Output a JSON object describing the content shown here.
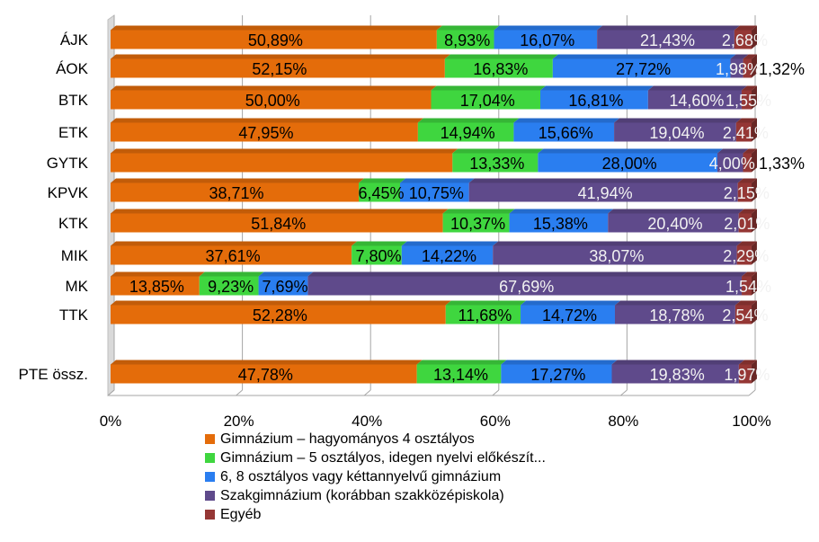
{
  "chart_data": {
    "type": "bar",
    "orientation": "horizontal",
    "stacked": "percent",
    "categories": [
      "ÁJK",
      "ÁOK",
      "BTK",
      "ETK",
      "GYTK",
      "KPVK",
      "KTK",
      "MIK",
      "MK",
      "TTK",
      "PTE össz."
    ],
    "series": [
      {
        "name": "Gimnázium – hagyományos 4 osztályos",
        "color": "#e46c0a",
        "values": [
          50.89,
          52.15,
          50.0,
          47.95,
          53.34,
          38.71,
          51.84,
          37.61,
          13.85,
          52.28,
          47.78
        ],
        "labels": [
          "50,89%",
          "52,15%",
          "50,00%",
          "47,95%",
          "",
          "38,71%",
          "51,84%",
          "37,61%",
          "13,85%",
          "52,28%",
          "47,78%"
        ]
      },
      {
        "name": "Gimnázium – 5 osztályos, idegen nyelvi előkészít...",
        "color": "#3fd63f",
        "values": [
          8.93,
          16.83,
          17.04,
          14.94,
          13.33,
          6.45,
          10.37,
          7.8,
          9.23,
          11.68,
          13.14
        ],
        "labels": [
          "8,93%",
          "16,83%",
          "17,04%",
          "14,94%",
          "13,33%",
          "6,45%",
          "10,37%",
          "7,80%",
          "9,23%",
          "11,68%",
          "13,14%"
        ]
      },
      {
        "name": "6, 8 osztályos vagy kéttannyelvű gimnázium",
        "color": "#2a7ef0",
        "values": [
          16.07,
          27.72,
          16.81,
          15.66,
          28.0,
          10.75,
          15.38,
          14.22,
          7.69,
          14.72,
          17.27
        ],
        "labels": [
          "16,07%",
          "27,72%",
          "16,81%",
          "15,66%",
          "28,00%",
          "10,75%",
          "15,38%",
          "14,22%",
          "7,69%",
          "14,72%",
          "17,27%"
        ]
      },
      {
        "name": "Szakgimnázium (korábban szakközépiskola)",
        "color": "#5f4a8b",
        "values": [
          21.43,
          1.98,
          14.6,
          19.04,
          4.0,
          41.94,
          20.4,
          38.07,
          67.69,
          18.78,
          19.83
        ],
        "labels": [
          "21,43%",
          "1,98%",
          "14,60%",
          "19,04%",
          "4,00%",
          "41,94%",
          "20,40%",
          "38,07%",
          "67,69%",
          "18,78%",
          "19,83%"
        ]
      },
      {
        "name": "Egyéb",
        "color": "#953735",
        "values": [
          2.68,
          1.32,
          1.55,
          2.41,
          1.33,
          2.15,
          2.01,
          2.29,
          1.54,
          2.54,
          1.97
        ],
        "labels": [
          "2,68%",
          "1,32%",
          "1,55%",
          "2,41%",
          "1,33%",
          "2,15%",
          "2,01%",
          "2,29%",
          "1,54%",
          "2,54%",
          "1,97%"
        ]
      }
    ],
    "outside_labels": [
      {
        "category": "ÁOK",
        "series": "Egyéb",
        "label": "1,32%"
      },
      {
        "category": "GYTK",
        "series": "Egyéb",
        "label": "1,33%"
      }
    ],
    "x_ticks": [
      "0%",
      "20%",
      "40%",
      "60%",
      "80%",
      "100%"
    ],
    "xlim": [
      0,
      100
    ],
    "grid": "vertical",
    "legend_position": "bottom"
  }
}
